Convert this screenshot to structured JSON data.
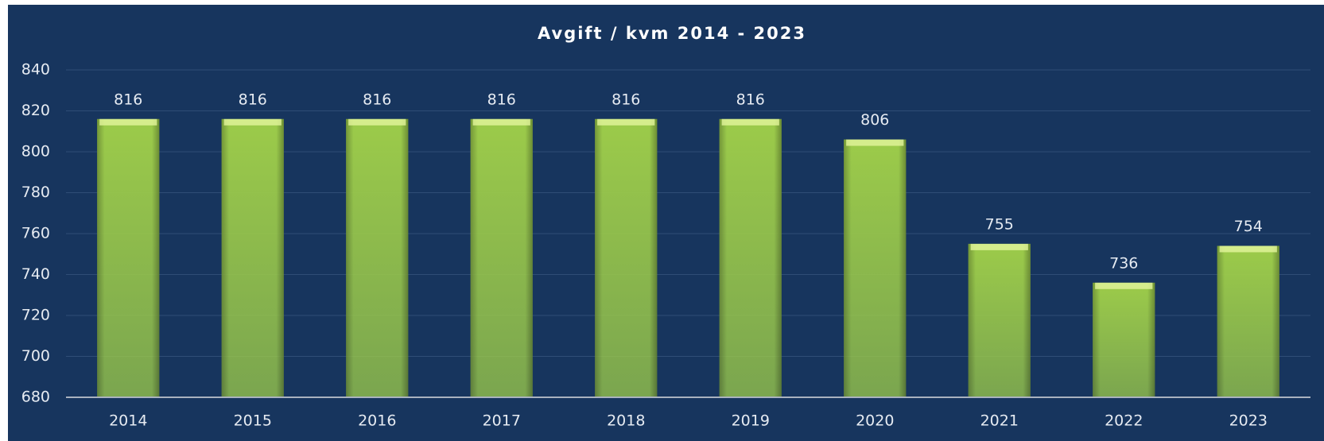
{
  "chart_data": {
    "type": "bar",
    "title": "Avgift / kvm 2014 - 2023",
    "categories": [
      "2014",
      "2015",
      "2016",
      "2017",
      "2018",
      "2019",
      "2020",
      "2021",
      "2022",
      "2023"
    ],
    "values": [
      816,
      816,
      816,
      816,
      816,
      816,
      806,
      755,
      736,
      754
    ],
    "color": "#9ccb4a",
    "ylim": [
      680,
      840
    ],
    "yticks": [
      680,
      700,
      720,
      740,
      760,
      780,
      800,
      820,
      840
    ],
    "grid": true
  }
}
